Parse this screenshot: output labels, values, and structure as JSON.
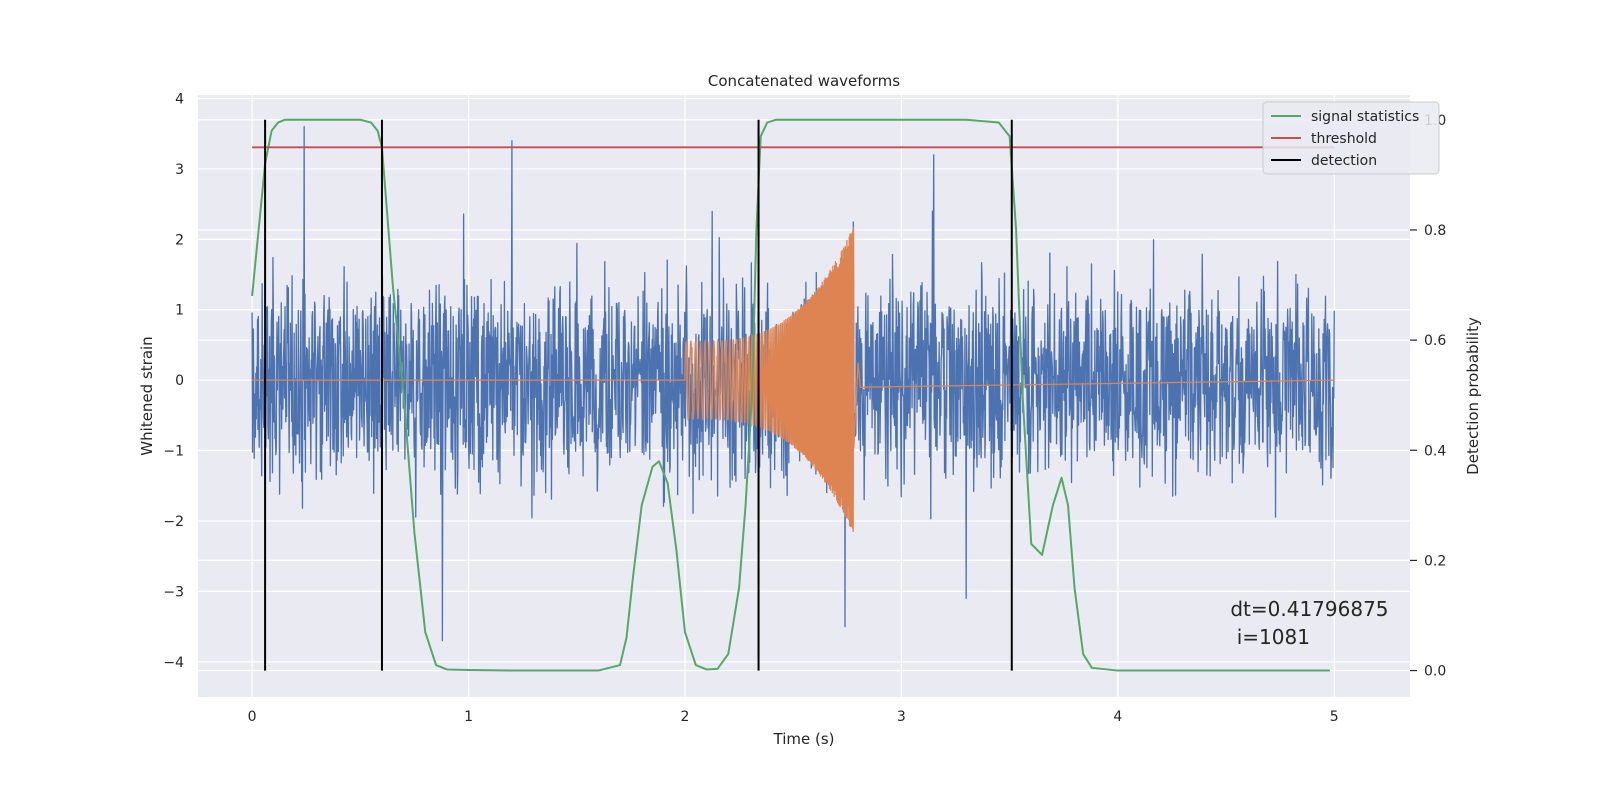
{
  "chart_data": {
    "type": "line",
    "title": "Concatenated waveforms",
    "xlabel": "Time (s)",
    "ylabel": "Whitened strain",
    "y2label": "Detection probability",
    "xlim": [
      -0.25,
      5.35
    ],
    "ylim": [
      -4.5,
      4.05
    ],
    "y2lim": [
      -0.048,
      1.045
    ],
    "xticks": [
      0,
      1,
      2,
      3,
      4,
      5
    ],
    "yticks": [
      -4,
      -3,
      -2,
      -1,
      0,
      1,
      2,
      3,
      4
    ],
    "ytick_labels": [
      "−4",
      "−3",
      "−2",
      "−1",
      "0",
      "1",
      "2",
      "3",
      "4"
    ],
    "y2ticks": [
      0.0,
      0.2,
      0.4,
      0.6,
      0.8,
      1.0
    ],
    "y2tick_labels": [
      "0.0",
      "0.2",
      "0.4",
      "0.6",
      "0.8",
      "1.0"
    ],
    "grid": true,
    "legend_position": "top-right",
    "colors": {
      "strain": "#4c72b0",
      "template": "#dd8452",
      "signal_statistics": "#55a868",
      "threshold": "#c44e52",
      "detection": "#000000",
      "background": "#eaeaf2"
    },
    "series": [
      {
        "name": "signal statistics",
        "axis": "right",
        "x": [
          0.0,
          0.03,
          0.06,
          0.09,
          0.12,
          0.15,
          0.2,
          0.3,
          0.4,
          0.5,
          0.55,
          0.58,
          0.6,
          0.62,
          0.65,
          0.7,
          0.75,
          0.8,
          0.85,
          0.9,
          1.0,
          1.2,
          1.4,
          1.6,
          1.7,
          1.73,
          1.76,
          1.8,
          1.85,
          1.88,
          1.92,
          1.96,
          2.0,
          2.05,
          2.1,
          2.15,
          2.2,
          2.25,
          2.28,
          2.31,
          2.33,
          2.35,
          2.38,
          2.42,
          2.5,
          2.7,
          3.0,
          3.3,
          3.45,
          3.5,
          3.53,
          3.56,
          3.6,
          3.65,
          3.7,
          3.74,
          3.77,
          3.8,
          3.84,
          3.88,
          4.0,
          4.5,
          4.98
        ],
        "y": [
          0.68,
          0.8,
          0.92,
          0.98,
          0.995,
          1.0,
          1.0,
          1.0,
          1.0,
          1.0,
          0.995,
          0.98,
          0.95,
          0.85,
          0.7,
          0.5,
          0.25,
          0.07,
          0.01,
          0.002,
          0.001,
          0.0,
          0.0,
          0.0,
          0.01,
          0.06,
          0.17,
          0.3,
          0.37,
          0.38,
          0.34,
          0.22,
          0.07,
          0.01,
          0.002,
          0.003,
          0.03,
          0.15,
          0.3,
          0.5,
          0.8,
          0.97,
          0.995,
          1.0,
          1.0,
          1.0,
          1.0,
          1.0,
          0.995,
          0.97,
          0.8,
          0.5,
          0.23,
          0.21,
          0.3,
          0.35,
          0.3,
          0.15,
          0.03,
          0.005,
          0.0,
          0.0,
          0.0
        ]
      },
      {
        "name": "threshold",
        "axis": "right",
        "x": [
          0.0,
          5.0
        ],
        "y": [
          0.95,
          0.95
        ]
      }
    ],
    "detections": {
      "name": "detection",
      "x": [
        0.06,
        0.6,
        2.34,
        3.51
      ]
    },
    "strain_noise": {
      "axis": "left",
      "x_range": [
        0.0,
        5.0
      ],
      "typical_max": 2.4,
      "typical_min": -2.5,
      "peaks": [
        {
          "x": 0.24,
          "y": 3.6
        },
        {
          "x": 1.2,
          "y": 3.4
        },
        {
          "x": 3.15,
          "y": 3.2
        },
        {
          "x": 0.88,
          "y": -3.7
        },
        {
          "x": 2.74,
          "y": -3.5
        },
        {
          "x": 3.3,
          "y": -3.1
        }
      ]
    },
    "injected_template": {
      "axis": "left",
      "x_start": 2.0,
      "x_end": 2.78,
      "amp_start": 0.55,
      "amp_end": 2.2,
      "chirp": true
    },
    "annotation": {
      "line1": "dt=0.41796875",
      "line2": " i=1081",
      "x": 4.52,
      "y": -3.35
    }
  }
}
